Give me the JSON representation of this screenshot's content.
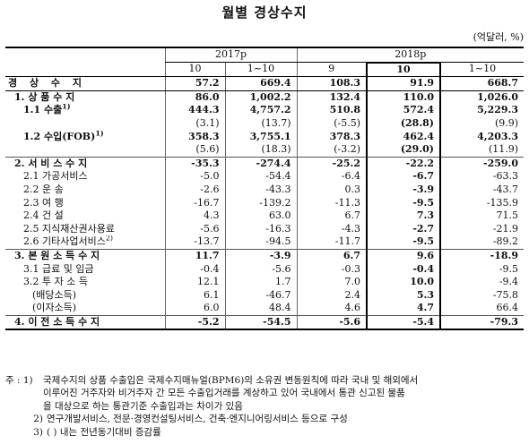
{
  "title": "월별 경상수지",
  "unit": "(억달러, %)",
  "header": {
    "year1": "2017p",
    "year2": "2018p",
    "cols": [
      "10",
      "1~10",
      "9",
      "10",
      "1~10"
    ]
  },
  "rows": [
    {
      "label": "경 상 수 지",
      "v": [
        "57.2",
        "669.4",
        "108.3",
        "91.9",
        "668.7"
      ]
    },
    {
      "label": "1. 상 품 수 지",
      "v": [
        "86.0",
        "1,002.2",
        "132.4",
        "110.0",
        "1,026.0"
      ]
    },
    {
      "label": "1.1 수출",
      "sup": "1)",
      "v": [
        "444.3",
        "4,757.2",
        "510.8",
        "572.4",
        "5,229.3"
      ]
    },
    {
      "label": "",
      "v": [
        "(3.1)",
        "(13.7)",
        "(-5.5)",
        "(28.8)",
        "(9.9)"
      ]
    },
    {
      "label": "1.2 수입(FOB)",
      "sup": "1)",
      "v": [
        "358.3",
        "3,755.1",
        "378.3",
        "462.4",
        "4,203.3"
      ]
    },
    {
      "label": "",
      "v": [
        "(5.6)",
        "(18.3)",
        "(-3.2)",
        "(29.0)",
        "(11.9)"
      ]
    },
    {
      "label": "2. 서 비 스 수 지",
      "v": [
        "-35.3",
        "-274.4",
        "-25.2",
        "-22.2",
        "-259.0"
      ]
    },
    {
      "label": "2.1 가공서비스",
      "v": [
        "-5.0",
        "-54.4",
        "-6.4",
        "-6.7",
        "-63.3"
      ]
    },
    {
      "label": "2.2 운 송",
      "v": [
        "-2.6",
        "-43.3",
        "0.3",
        "-3.9",
        "-43.7"
      ]
    },
    {
      "label": "2.3 여 행",
      "v": [
        "-16.7",
        "-139.2",
        "-11.3",
        "-9.5",
        "-135.9"
      ]
    },
    {
      "label": "2.4 건 설",
      "v": [
        "4.3",
        "63.0",
        "6.7",
        "7.3",
        "71.5"
      ]
    },
    {
      "label": "2.5 지식재산권사용료",
      "v": [
        "-5.6",
        "-16.3",
        "-4.3",
        "-2.7",
        "-21.9"
      ]
    },
    {
      "label": "2.6 기타사업서비스",
      "sup": "2)",
      "v": [
        "-13.7",
        "-94.5",
        "-11.7",
        "-9.5",
        "-89.2"
      ]
    },
    {
      "label": "3. 본 원 소 득 수 지",
      "v": [
        "11.7",
        "-3.9",
        "6.7",
        "9.6",
        "-18.9"
      ]
    },
    {
      "label": "3.1 급료 및 임금",
      "v": [
        "-0.4",
        "-5.6",
        "-0.3",
        "-0.4",
        "-9.5"
      ]
    },
    {
      "label": "3.2 투 자 소 득",
      "v": [
        "12.1",
        "1.7",
        "7.0",
        "10.0",
        "-9.4"
      ]
    },
    {
      "label": "(배당소득)",
      "v": [
        "6.1",
        "-46.7",
        "2.4",
        "5.3",
        "-75.8"
      ]
    },
    {
      "label": "(이자소득)",
      "v": [
        "6.0",
        "48.4",
        "4.6",
        "4.7",
        "66.4"
      ]
    },
    {
      "label": "4. 이 전 소 득 수 지",
      "v": [
        "-5.2",
        "-54.5",
        "-5.6",
        "-5.4",
        "-79.3"
      ]
    }
  ],
  "notes": [
    {
      "key": "주 : 1)",
      "text": "국제수지의 상품 수출입은 국제수지매뉴얼(BPM6)의 소유권 변동원칙에 따라 국내 및 해외에서"
    },
    {
      "key": "",
      "text": "이루어진 거주자와 비거주자 간 모든 수출입거래를 계상하고 있어 국내에서 통관 신고된 물품"
    },
    {
      "key": "",
      "text": "을 대상으로 하는 통관기준 수출입과는 차이가 있음"
    },
    {
      "key": "2)",
      "text": "연구개발서비스, 전문·경영컨설팅서비스, 건축·엔지니어링서비스 등으로 구성"
    },
    {
      "key": "3)",
      "text": "( ) 내는 전년동기대비 증감률"
    }
  ]
}
